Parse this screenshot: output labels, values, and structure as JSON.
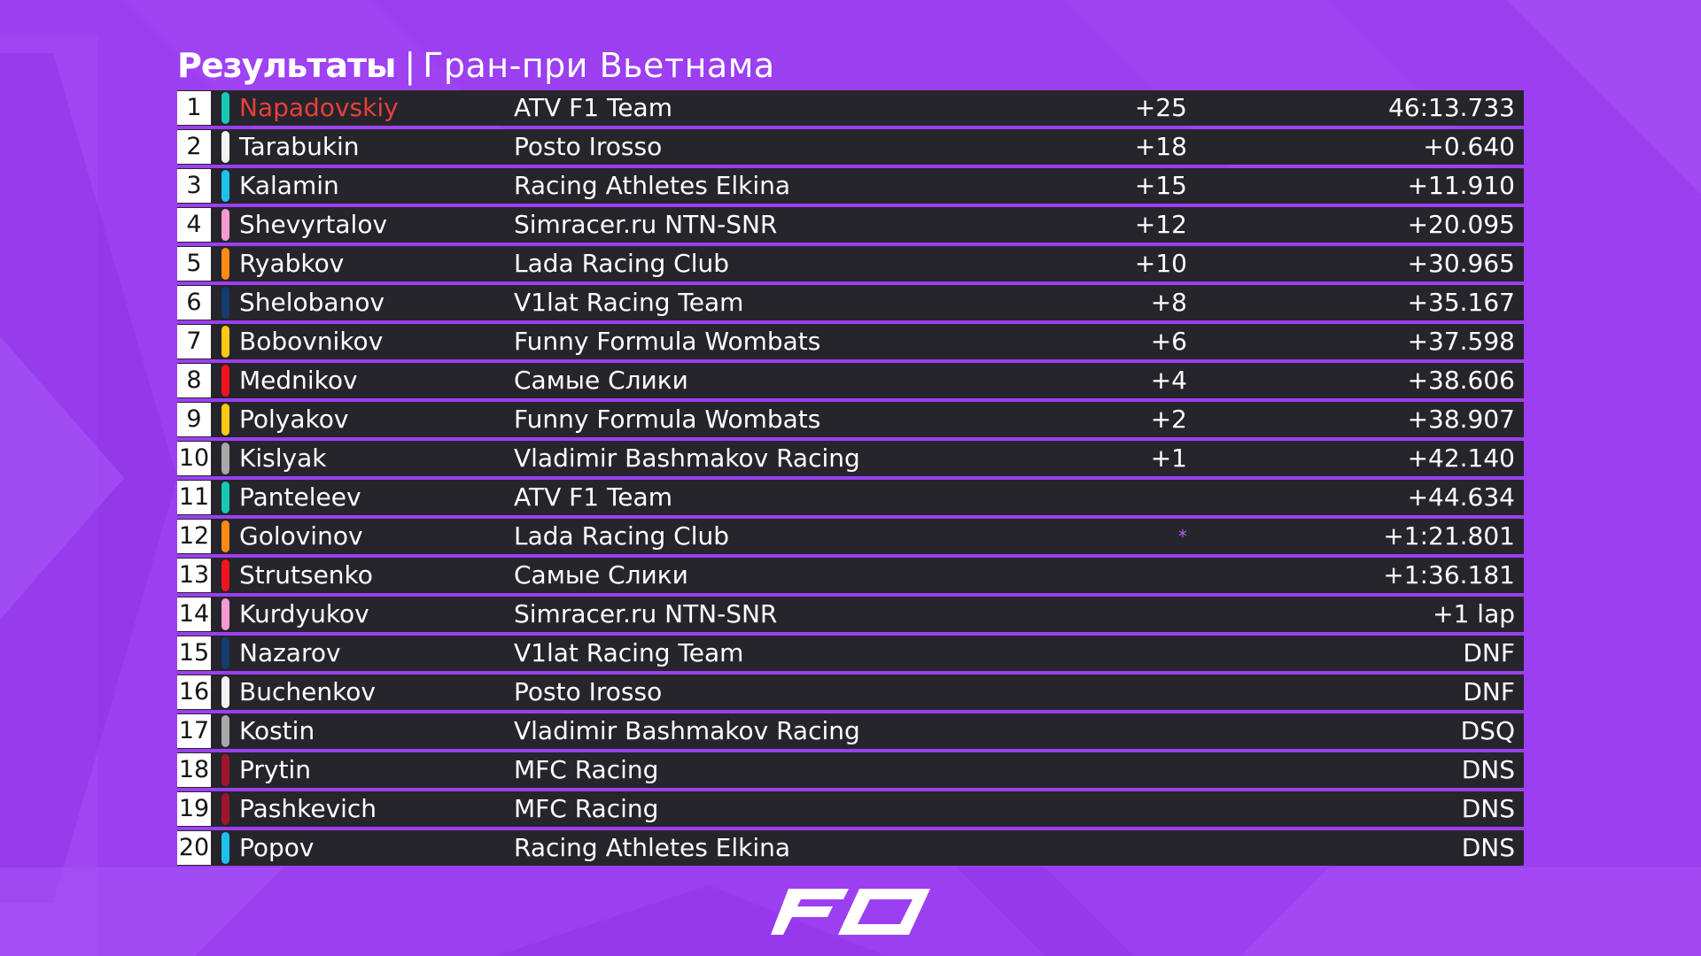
{
  "header": {
    "title": "Результаты",
    "separator": "|",
    "subtitle": "Гран-при Вьетнама"
  },
  "colors": {
    "background": "#9b3ff0",
    "row": "#25252b",
    "highlight": "#e8403a",
    "star": "#b45cf2"
  },
  "results": [
    {
      "pos": "1",
      "driver": "Napadovskiy",
      "team": "ATV F1 Team",
      "points": "+25",
      "time": "46:13.733",
      "team_color": "#19c8b4"
    },
    {
      "pos": "2",
      "driver": "Tarabukin",
      "team": "Posto Irosso",
      "points": "+18",
      "time": "+0.640",
      "team_color": "#f2f2f2"
    },
    {
      "pos": "3",
      "driver": "Kalamin",
      "team": "Racing Athletes Elkina",
      "points": "+15",
      "time": "+11.910",
      "team_color": "#1ec0f0"
    },
    {
      "pos": "4",
      "driver": "Shevyrtalov",
      "team": "Simracer.ru NTN-SNR",
      "points": "+12",
      "time": "+20.095",
      "team_color": "#f59ad2"
    },
    {
      "pos": "5",
      "driver": "Ryabkov",
      "team": "Lada Racing Club",
      "points": "+10",
      "time": "+30.965",
      "team_color": "#ff8a14"
    },
    {
      "pos": "6",
      "driver": "Shelobanov",
      "team": "V1lat Racing Team",
      "points": "+8",
      "time": "+35.167",
      "team_color": "#143c6e"
    },
    {
      "pos": "7",
      "driver": "Bobovnikov",
      "team": "Funny Formula Wombats",
      "points": "+6",
      "time": "+37.598",
      "team_color": "#ffc814"
    },
    {
      "pos": "8",
      "driver": "Mednikov",
      "team": "Самые Слики",
      "points": "+4",
      "time": "+38.606",
      "team_color": "#f0141e"
    },
    {
      "pos": "9",
      "driver": "Polyakov",
      "team": "Funny Formula Wombats",
      "points": "+2",
      "time": "+38.907",
      "team_color": "#ffc814"
    },
    {
      "pos": "10",
      "driver": "Kislyak",
      "team": "Vladimir Bashmakov Racing",
      "points": "+1",
      "time": "+42.140",
      "team_color": "#a8a8a8"
    },
    {
      "pos": "11",
      "driver": "Panteleev",
      "team": "ATV F1 Team",
      "points": "",
      "time": "+44.634",
      "team_color": "#19c8b4"
    },
    {
      "pos": "12",
      "driver": "Golovinov",
      "team": "Lada Racing Club",
      "points": "*",
      "time": "+1:21.801",
      "team_color": "#ff8a14"
    },
    {
      "pos": "13",
      "driver": "Strutsenko",
      "team": "Самые Слики",
      "points": "",
      "time": "+1:36.181",
      "team_color": "#f0141e"
    },
    {
      "pos": "14",
      "driver": "Kurdyukov",
      "team": "Simracer.ru NTN-SNR",
      "points": "",
      "time": "+1 lap",
      "team_color": "#f59ad2"
    },
    {
      "pos": "15",
      "driver": "Nazarov",
      "team": "V1lat Racing Team",
      "points": "",
      "time": "DNF",
      "team_color": "#143c6e"
    },
    {
      "pos": "16",
      "driver": "Buchenkov",
      "team": "Posto Irosso",
      "points": "",
      "time": "DNF",
      "team_color": "#f2f2f2"
    },
    {
      "pos": "17",
      "driver": "Kostin",
      "team": "Vladimir Bashmakov Racing",
      "points": "",
      "time": "DSQ",
      "team_color": "#a8a8a8"
    },
    {
      "pos": "18",
      "driver": "Prytin",
      "team": "MFC Racing",
      "points": "",
      "time": "DNS",
      "team_color": "#a0142d"
    },
    {
      "pos": "19",
      "driver": "Pashkevich",
      "team": "MFC Racing",
      "points": "",
      "time": "DNS",
      "team_color": "#a0142d"
    },
    {
      "pos": "20",
      "driver": "Popov",
      "team": "Racing Athletes Elkina",
      "points": "",
      "time": "DNS",
      "team_color": "#1ec0f0"
    }
  ],
  "logo": {
    "name": "fo-logo",
    "text": "FO"
  }
}
